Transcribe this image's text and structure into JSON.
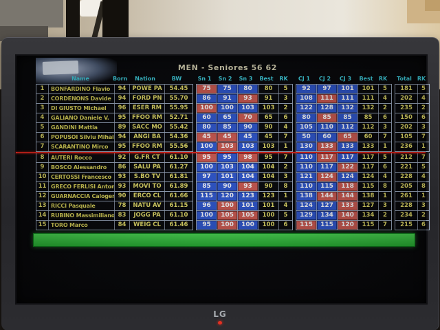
{
  "screen": {
    "title": "MEN - Seniores 56 62",
    "columns": [
      "",
      "Name",
      "Born",
      "Nation",
      "BW",
      "Sn 1",
      "Sn 2",
      "Sn 3",
      "Best",
      "RK",
      "CJ 1",
      "CJ 2",
      "CJ 3",
      "Best",
      "RK",
      "Total",
      "RK"
    ],
    "class_divider_after_row": 7,
    "rows": [
      [
        "1",
        "BONFARDINO Flavio",
        "94",
        "POWE PA",
        "54.45",
        {
          "v": "75",
          "ok": false
        },
        {
          "v": "75",
          "ok": true
        },
        {
          "v": "80",
          "ok": true
        },
        "80",
        "5",
        {
          "v": "92",
          "ok": true
        },
        {
          "v": "97",
          "ok": true
        },
        {
          "v": "101",
          "ok": true
        },
        "101",
        "5",
        "181",
        "5"
      ],
      [
        "2",
        "CORDENONS Davide",
        "94",
        "FORD PN",
        "55.70",
        {
          "v": "86",
          "ok": true
        },
        {
          "v": "91",
          "ok": true
        },
        {
          "v": "93",
          "ok": false
        },
        "91",
        "3",
        {
          "v": "108",
          "ok": true
        },
        {
          "v": "111",
          "ok": false
        },
        {
          "v": "111",
          "ok": true
        },
        "111",
        "4",
        "202",
        "4"
      ],
      [
        "3",
        "DI GIUSTO Michael",
        "96",
        "ESER RM",
        "55.95",
        {
          "v": "100",
          "ok": false
        },
        {
          "v": "100",
          "ok": true
        },
        {
          "v": "103",
          "ok": true
        },
        "103",
        "2",
        {
          "v": "122",
          "ok": true
        },
        {
          "v": "128",
          "ok": true
        },
        {
          "v": "132",
          "ok": true
        },
        "132",
        "2",
        "235",
        "2"
      ],
      [
        "4",
        "GALIANO Daniele V.",
        "95",
        "FFOO RM",
        "52.71",
        {
          "v": "60",
          "ok": true
        },
        {
          "v": "65",
          "ok": true
        },
        {
          "v": "70",
          "ok": false
        },
        "65",
        "6",
        {
          "v": "80",
          "ok": true
        },
        {
          "v": "85",
          "ok": false
        },
        {
          "v": "85",
          "ok": true
        },
        "85",
        "6",
        "150",
        "6"
      ],
      [
        "5",
        "GANDINI Mattia",
        "89",
        "SACC MO",
        "55.42",
        {
          "v": "80",
          "ok": true
        },
        {
          "v": "85",
          "ok": true
        },
        {
          "v": "90",
          "ok": true
        },
        "90",
        "4",
        {
          "v": "105",
          "ok": true
        },
        {
          "v": "110",
          "ok": true
        },
        {
          "v": "112",
          "ok": true
        },
        "112",
        "3",
        "202",
        "3"
      ],
      [
        "6",
        "POPUSOI Silviu Mihai",
        "94",
        "ANGI BA",
        "54.36",
        {
          "v": "45",
          "ok": false
        },
        {
          "v": "45",
          "ok": false
        },
        {
          "v": "45",
          "ok": true
        },
        "45",
        "7",
        {
          "v": "50",
          "ok": true
        },
        {
          "v": "60",
          "ok": true
        },
        {
          "v": "65",
          "ok": false
        },
        "60",
        "7",
        "105",
        "7"
      ],
      [
        "7",
        "SCARANTINO Mirco",
        "95",
        "FFOO RM",
        "55.56",
        {
          "v": "100",
          "ok": true
        },
        {
          "v": "103",
          "ok": false
        },
        {
          "v": "103",
          "ok": true
        },
        "103",
        "1",
        {
          "v": "130",
          "ok": true
        },
        {
          "v": "133",
          "ok": false
        },
        {
          "v": "133",
          "ok": true
        },
        "133",
        "1",
        "236",
        "1"
      ],
      [
        "8",
        "AUTERI Rocco",
        "92",
        "G.FR CT",
        "61.10",
        {
          "v": "95",
          "ok": false
        },
        {
          "v": "95",
          "ok": true
        },
        {
          "v": "98",
          "ok": false
        },
        "95",
        "7",
        {
          "v": "110",
          "ok": true
        },
        {
          "v": "117",
          "ok": false
        },
        {
          "v": "117",
          "ok": true
        },
        "117",
        "5",
        "212",
        "7"
      ],
      [
        "9",
        "BOSCO Alessandro",
        "86",
        "SALU PA",
        "61.27",
        {
          "v": "100",
          "ok": true
        },
        {
          "v": "103",
          "ok": true
        },
        {
          "v": "104",
          "ok": true
        },
        "104",
        "2",
        {
          "v": "110",
          "ok": true
        },
        {
          "v": "117",
          "ok": true
        },
        {
          "v": "122",
          "ok": false
        },
        "117",
        "6",
        "221",
        "5"
      ],
      [
        "10",
        "CERTOSSI Francesco",
        "93",
        "S.BO TV",
        "61.81",
        {
          "v": "97",
          "ok": true
        },
        {
          "v": "101",
          "ok": true
        },
        {
          "v": "104",
          "ok": true
        },
        "104",
        "3",
        {
          "v": "121",
          "ok": true
        },
        {
          "v": "124",
          "ok": false
        },
        {
          "v": "124",
          "ok": true
        },
        "124",
        "4",
        "228",
        "4"
      ],
      [
        "11",
        "GRECO FERLISI Antony",
        "93",
        "MOVI TO",
        "61.89",
        {
          "v": "85",
          "ok": true
        },
        {
          "v": "90",
          "ok": true
        },
        {
          "v": "93",
          "ok": false
        },
        "90",
        "8",
        {
          "v": "110",
          "ok": true
        },
        {
          "v": "115",
          "ok": true
        },
        {
          "v": "118",
          "ok": false
        },
        "115",
        "8",
        "205",
        "8"
      ],
      [
        "12",
        "GUARNACCIA Calogero",
        "90",
        "ERCO CL",
        "61.66",
        {
          "v": "115",
          "ok": true
        },
        {
          "v": "120",
          "ok": true
        },
        {
          "v": "123",
          "ok": true
        },
        "123",
        "1",
        {
          "v": "138",
          "ok": true
        },
        {
          "v": "144",
          "ok": false
        },
        {
          "v": "144",
          "ok": false
        },
        "138",
        "1",
        "261",
        "1"
      ],
      [
        "13",
        "RICCI Pasquale",
        "78",
        "NATU AV",
        "61.15",
        {
          "v": "96",
          "ok": true
        },
        {
          "v": "100",
          "ok": false
        },
        {
          "v": "101",
          "ok": true
        },
        "101",
        "4",
        {
          "v": "124",
          "ok": true
        },
        {
          "v": "127",
          "ok": true
        },
        {
          "v": "133",
          "ok": false
        },
        "127",
        "3",
        "228",
        "3"
      ],
      [
        "14",
        "RUBINO Massimiliano",
        "83",
        "JOGG PA",
        "61.10",
        {
          "v": "100",
          "ok": true
        },
        {
          "v": "105",
          "ok": false
        },
        {
          "v": "105",
          "ok": false
        },
        "100",
        "5",
        {
          "v": "129",
          "ok": true
        },
        {
          "v": "134",
          "ok": true
        },
        {
          "v": "140",
          "ok": false
        },
        "134",
        "2",
        "234",
        "2"
      ],
      [
        "15",
        "TORO Marco",
        "84",
        "WEIG CL",
        "61.46",
        {
          "v": "95",
          "ok": true
        },
        {
          "v": "100",
          "ok": false
        },
        {
          "v": "100",
          "ok": true
        },
        "100",
        "6",
        {
          "v": "115",
          "ok": false
        },
        {
          "v": "115",
          "ok": true
        },
        {
          "v": "120",
          "ok": false
        },
        "115",
        "7",
        "215",
        "6"
      ]
    ],
    "colors": {
      "good_lift_bg": "#2f57cf",
      "failed_lift_bg": "#cf5a50",
      "header_text": "#41d6e6",
      "data_text": "#e7df68",
      "class_divider": "#e0251c",
      "timer_bar": "#35cb3d"
    }
  },
  "tv": {
    "brand": "LG"
  }
}
